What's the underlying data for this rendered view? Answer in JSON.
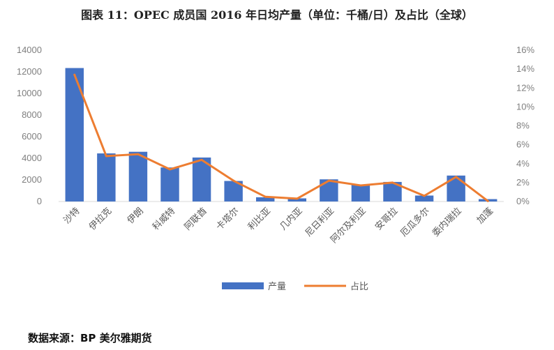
{
  "title": "图表 11：OPEC 成员国 2016 年日均产量（单位：千桶/日）及占比（全球）",
  "source": "数据来源：BP 美尔雅期货",
  "colors": {
    "bar": "#4472C4",
    "line": "#ED7D31",
    "axis": "#d9d9d9",
    "text": "#7f7f7f"
  },
  "chart_data": {
    "type": "bar",
    "categories": [
      "沙特",
      "伊拉克",
      "伊朗",
      "科威特",
      "阿联酋",
      "卡塔尔",
      "利比亚",
      "几内亚",
      "尼日利亚",
      "阿尔及利亚",
      "安哥拉",
      "厄瓜多尔",
      "委内瑞拉",
      "加蓬"
    ],
    "series": [
      {
        "name": "产量",
        "type": "bar",
        "axis": "left",
        "values": [
          12350,
          4450,
          4600,
          3150,
          4070,
          1900,
          390,
          290,
          2050,
          1580,
          1810,
          550,
          2400,
          220
        ]
      },
      {
        "name": "占比",
        "type": "line",
        "axis": "right",
        "unit": "%",
        "values": [
          13.4,
          4.8,
          5.0,
          3.4,
          4.4,
          2.2,
          0.5,
          0.3,
          2.2,
          1.7,
          2.0,
          0.6,
          2.6,
          0.05
        ]
      }
    ],
    "ylim": [
      0,
      14000
    ],
    "y_ticks": [
      "0",
      "2000",
      "4000",
      "6000",
      "8000",
      "10000",
      "12000",
      "14000"
    ],
    "y2lim": [
      0,
      16
    ],
    "y2_ticks": [
      "0%",
      "2%",
      "4%",
      "6%",
      "8%",
      "10%",
      "12%",
      "14%",
      "16%"
    ],
    "grid": false,
    "legend": "bottom"
  }
}
